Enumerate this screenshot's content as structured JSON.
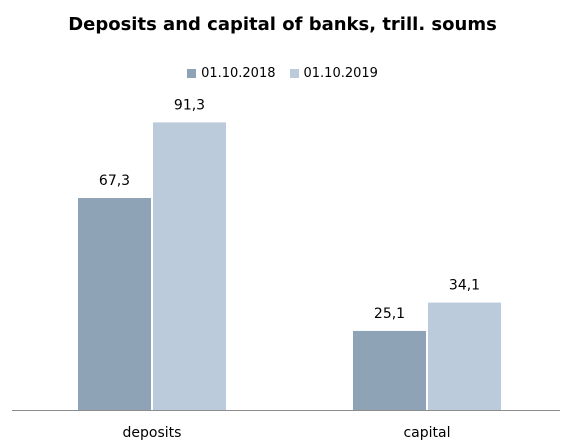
{
  "chart_data": {
    "type": "bar",
    "title": "Deposits and capital of banks, trill. soums",
    "categories": [
      "deposits",
      "capital"
    ],
    "series": [
      {
        "name": "01.10.2018",
        "values": [
          67.3,
          25.1
        ],
        "labels": [
          "67,3",
          "25,1"
        ],
        "color": "#8ea3b5"
      },
      {
        "name": "01.10.2019",
        "values": [
          91.3,
          34.1
        ],
        "labels": [
          "91,3",
          "34,1"
        ],
        "color": "#bccbdb"
      }
    ],
    "ylim": [
      0,
      100
    ],
    "grid": false,
    "legend": "top-center",
    "xlabel": "",
    "ylabel": ""
  }
}
